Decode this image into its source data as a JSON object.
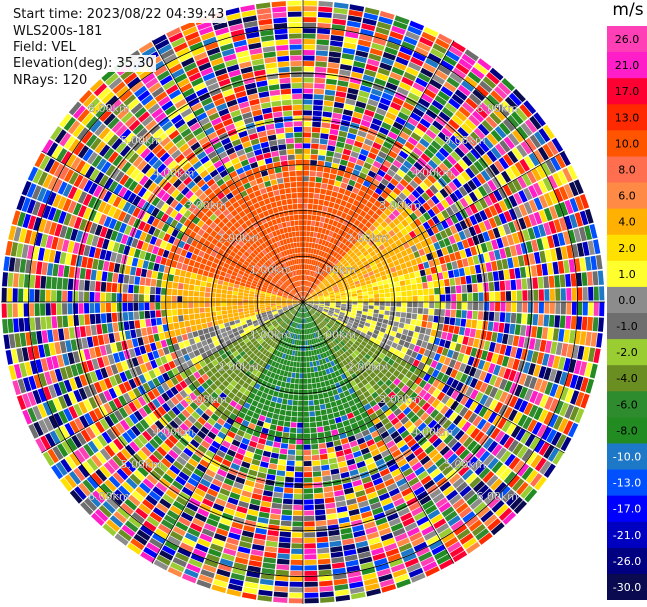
{
  "header": {
    "start_time": "Start time: 2023/08/22 04:39:43",
    "instrument": "WLS200s-181",
    "field": "Field: VEL",
    "elevation": "Elevation(deg): 35.30",
    "nrays": "NRays: 120"
  },
  "chart_data": {
    "type": "ppi",
    "colorbar": {
      "unit": "m/s",
      "tick_labels": [
        "26.0",
        "21.0",
        "17.0",
        "13.0",
        "10.0",
        "8.0",
        "6.0",
        "4.0",
        "2.0",
        "1.0",
        "0.0",
        "-1.0",
        "-2.0",
        "-4.0",
        "-6.0",
        "-8.0",
        "-10.0",
        "-13.0",
        "-17.0",
        "-21.0",
        "-26.0",
        "-30.0"
      ],
      "colors": [
        "#ff3fb5",
        "#ff1ec8",
        "#ff0033",
        "#ff2a00",
        "#ff5500",
        "#ff6f4f",
        "#ff8a45",
        "#ffb000",
        "#ffe000",
        "#ffff2e",
        "#8c8c8c",
        "#6e6e6e",
        "#9acd32",
        "#6b8e23",
        "#2e8b2e",
        "#228b22",
        "#1e78c8",
        "#0050ff",
        "#0000ff",
        "#0000c0",
        "#000080",
        "#0a0a50"
      ]
    },
    "range_rings_labels": [
      "1.00km",
      "2.00km",
      "3.00km",
      "4.00km",
      "5.00km",
      "6.00km"
    ],
    "range_ring_km": [
      1,
      2,
      3,
      4,
      5,
      6
    ],
    "max_range_km": 6.6,
    "sector_fields": [
      {
        "from_deg": 285,
        "to_deg": 360,
        "value": 10.0
      },
      {
        "from_deg": 0,
        "to_deg": 40,
        "value": 10.0
      },
      {
        "from_deg": 40,
        "to_deg": 75,
        "value": 4.0
      },
      {
        "from_deg": 255,
        "to_deg": 285,
        "value": 4.0
      },
      {
        "from_deg": 75,
        "to_deg": 90,
        "value": 2.0
      },
      {
        "from_deg": 90,
        "to_deg": 120,
        "value": 0.0
      },
      {
        "from_deg": 240,
        "to_deg": 255,
        "value": 0.0
      },
      {
        "from_deg": 120,
        "to_deg": 150,
        "value": -4.0
      },
      {
        "from_deg": 210,
        "to_deg": 240,
        "value": -4.0
      },
      {
        "from_deg": 150,
        "to_deg": 210,
        "value": -8.0
      }
    ]
  }
}
